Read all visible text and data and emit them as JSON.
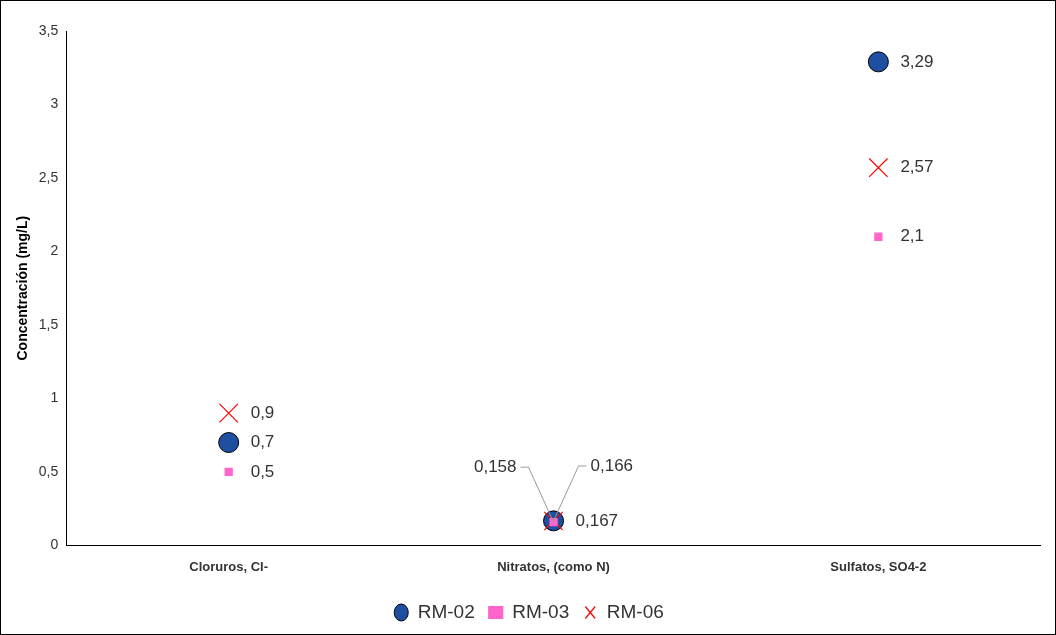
{
  "chart_data": {
    "type": "scatter",
    "ylabel": "Concentración (mg/L)",
    "categories": [
      "Cloruros, Cl-",
      "Nitratos, (como N)",
      "Sulfatos, SO4-2"
    ],
    "series": [
      {
        "name": "RM-02",
        "color": "#1f4fa0",
        "marker": "circle",
        "values": [
          0.7,
          0.167,
          3.29
        ]
      },
      {
        "name": "RM-03",
        "color": "#ff66cc",
        "marker": "square",
        "values": [
          0.5,
          0.158,
          2.1
        ]
      },
      {
        "name": "RM-06",
        "color": "#ff0000",
        "marker": "cross",
        "values": [
          0.9,
          0.166,
          2.57
        ]
      }
    ],
    "ylim": [
      0,
      3.5
    ],
    "yticks": [
      {
        "value": 0,
        "label": "0"
      },
      {
        "value": 0.5,
        "label": "0,5"
      },
      {
        "value": 1,
        "label": "1"
      },
      {
        "value": 1.5,
        "label": "1,5"
      },
      {
        "value": 2,
        "label": "2"
      },
      {
        "value": 2.5,
        "label": "2,5"
      },
      {
        "value": 3,
        "label": "3"
      },
      {
        "value": 3.5,
        "label": "3,5"
      }
    ],
    "value_labels": [
      [
        "0,7",
        "0,167",
        "3,29"
      ],
      [
        "0,5",
        "0,158",
        "2,1"
      ],
      [
        "0,9",
        "0,166",
        "2,57"
      ]
    ],
    "grid": false,
    "legend": "bottom"
  }
}
